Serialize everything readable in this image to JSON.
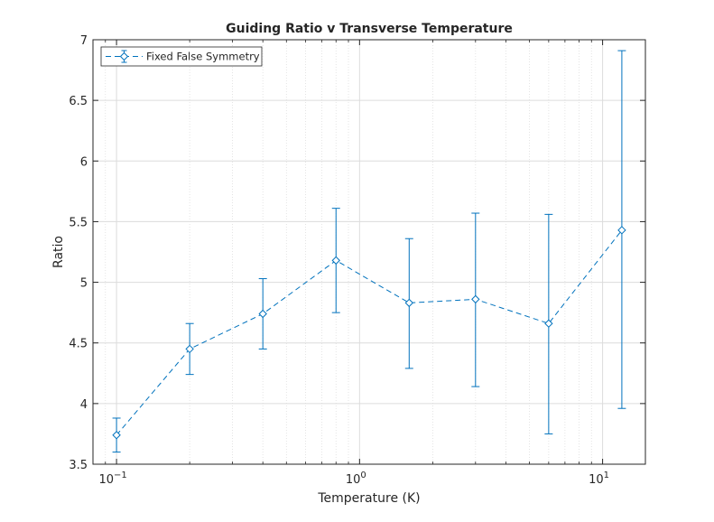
{
  "chart_data": {
    "type": "line",
    "title": "Guiding Ratio v Transverse Temperature",
    "xlabel": "Temperature (K)",
    "ylabel": "Ratio",
    "xscale": "log",
    "xlim": [
      0.08,
      15
    ],
    "ylim": [
      3.5,
      7
    ],
    "yticks": [
      3.5,
      4,
      4.5,
      5,
      5.5,
      6,
      6.5,
      7
    ],
    "ytick_labels": [
      "3.5",
      "4",
      "4.5",
      "5",
      "5.5",
      "6",
      "6.5",
      "7"
    ],
    "xticks": [
      {
        "value": 0.1,
        "base": "10",
        "exp": "−1"
      },
      {
        "value": 1,
        "base": "10",
        "exp": "0"
      },
      {
        "value": 10,
        "base": "10",
        "exp": "1"
      }
    ],
    "grid": true,
    "minor_grid": true,
    "legend_position": "top-left",
    "series": [
      {
        "name": "Fixed False Symmetry",
        "color": "#0072BD",
        "line_style": "dashed",
        "marker": "diamond",
        "x": [
          0.1,
          0.2,
          0.4,
          0.8,
          1.6,
          3,
          6,
          12
        ],
        "y": [
          3.74,
          4.45,
          4.74,
          5.18,
          4.83,
          4.86,
          4.66,
          5.43
        ],
        "err_low": [
          3.6,
          4.24,
          4.45,
          4.75,
          4.29,
          4.14,
          3.75,
          3.96
        ],
        "err_high": [
          3.88,
          4.66,
          5.03,
          5.61,
          5.36,
          5.57,
          5.56,
          6.91
        ]
      }
    ]
  }
}
